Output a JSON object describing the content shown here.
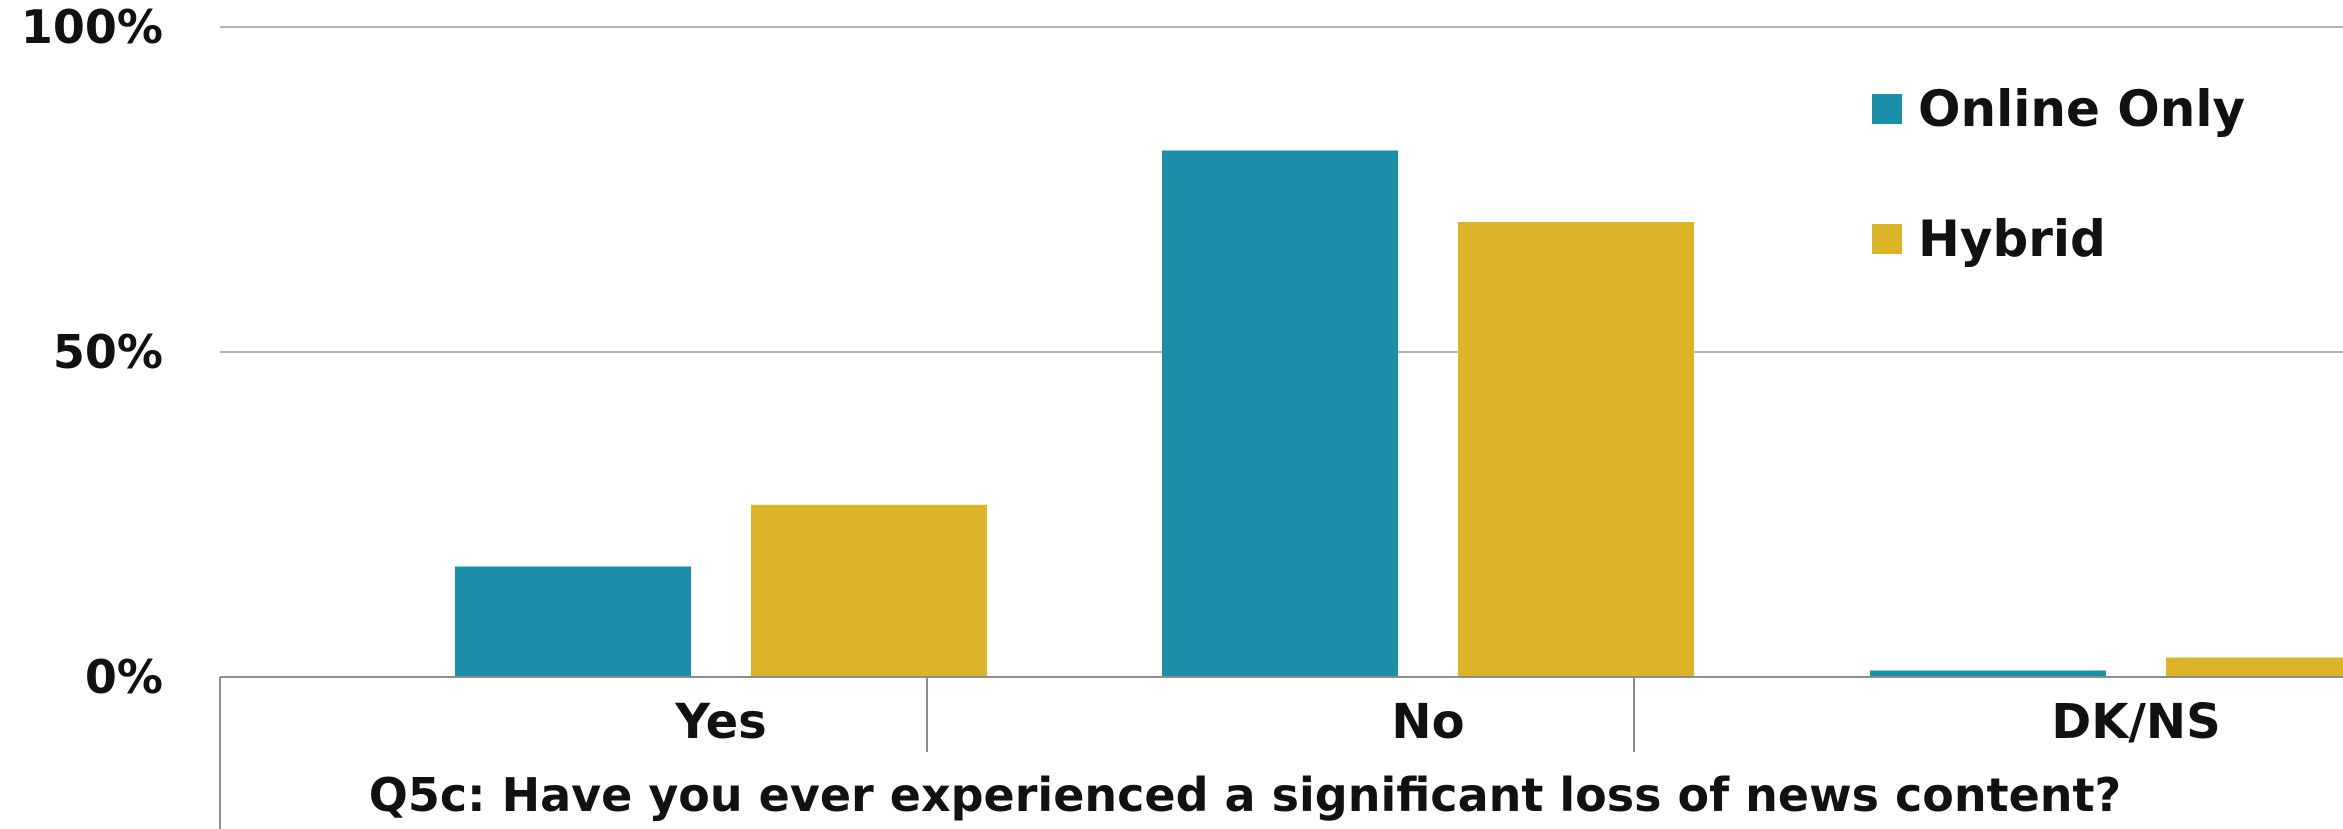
{
  "chart_data": {
    "type": "bar",
    "categories": [
      "Yes",
      "No",
      "DK/NS"
    ],
    "series": [
      {
        "name": "Online Only",
        "values": [
          17,
          81,
          1
        ],
        "color": "#1b8fa8"
      },
      {
        "name": "Hybrid",
        "values": [
          26.5,
          70,
          3
        ],
        "color": "#dbb428"
      }
    ],
    "ylim": [
      0,
      100
    ],
    "yticks": [
      0,
      50,
      100
    ],
    "ytick_labels": [
      "0%",
      "50%",
      "100%"
    ],
    "xlabel": "Q5c: Have you ever experienced a significant loss of news content?",
    "ylabel": "",
    "grid": true,
    "legend_position": "top-right"
  }
}
